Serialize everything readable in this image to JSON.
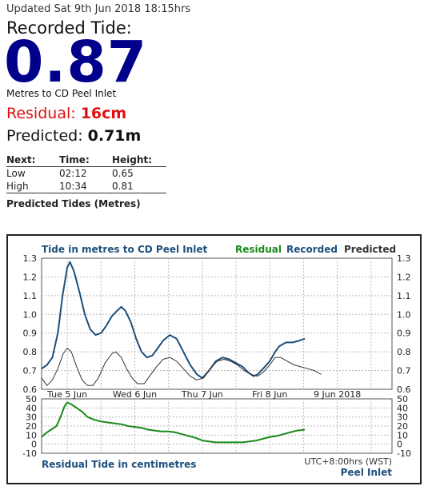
{
  "header": {
    "updated": "Updated Sat 9th Jun 2018 18:15hrs",
    "recorded_label": "Recorded Tide:",
    "recorded_value": "0.87",
    "units": "Metres to CD Peel Inlet",
    "residual_label": "Residual:",
    "residual_value": "16cm",
    "predicted_label": "Predicted:",
    "predicted_value": "0.71m"
  },
  "next_table": {
    "headers": [
      "Next:",
      "Time:",
      "Height:"
    ],
    "rows": [
      {
        "type": "Low",
        "time": "02:12",
        "height": "0.65"
      },
      {
        "type": "High",
        "time": "10:34",
        "height": "0.81"
      }
    ]
  },
  "predicted_tides_title": "Predicted Tides (Metres)",
  "colors": {
    "residual": "#1a8a1a",
    "recorded": "#1c4f7c",
    "predicted": "#333333",
    "recorded_value": "#00008b",
    "residual_text": "#e01010"
  },
  "chart_data": [
    {
      "type": "line",
      "title": "Tide in metres to CD Peel Inlet",
      "legend": [
        "Residual",
        "Recorded",
        "Predicted"
      ],
      "ylim": [
        0.6,
        1.3
      ],
      "yticks": [
        "0.6",
        "0.7",
        "0.8",
        "0.9",
        "1.0",
        "1.1",
        "1.2",
        "1.3"
      ],
      "xticks": [
        "Tue 5 Jun",
        "Wed 6 Jun",
        "Thu 7 Jun",
        "Fri 8 Jun",
        "9 Jun 2018"
      ],
      "xrange_days": [
        4.62,
        9.81
      ],
      "grid": true,
      "series": [
        {
          "name": "Recorded",
          "points": [
            [
              4.62,
              0.71
            ],
            [
              4.7,
              0.73
            ],
            [
              4.78,
              0.77
            ],
            [
              4.86,
              0.9
            ],
            [
              4.93,
              1.1
            ],
            [
              5.0,
              1.25
            ],
            [
              5.04,
              1.28
            ],
            [
              5.1,
              1.23
            ],
            [
              5.18,
              1.12
            ],
            [
              5.26,
              1.0
            ],
            [
              5.34,
              0.92
            ],
            [
              5.42,
              0.89
            ],
            [
              5.5,
              0.9
            ],
            [
              5.58,
              0.94
            ],
            [
              5.66,
              0.99
            ],
            [
              5.74,
              1.02
            ],
            [
              5.8,
              1.04
            ],
            [
              5.86,
              1.02
            ],
            [
              5.94,
              0.96
            ],
            [
              6.02,
              0.87
            ],
            [
              6.1,
              0.8
            ],
            [
              6.18,
              0.77
            ],
            [
              6.26,
              0.78
            ],
            [
              6.34,
              0.82
            ],
            [
              6.42,
              0.86
            ],
            [
              6.52,
              0.89
            ],
            [
              6.62,
              0.87
            ],
            [
              6.72,
              0.8
            ],
            [
              6.82,
              0.73
            ],
            [
              6.92,
              0.68
            ],
            [
              7.0,
              0.66
            ],
            [
              7.1,
              0.7
            ],
            [
              7.2,
              0.75
            ],
            [
              7.3,
              0.77
            ],
            [
              7.4,
              0.76
            ],
            [
              7.5,
              0.74
            ],
            [
              7.6,
              0.72
            ],
            [
              7.68,
              0.69
            ],
            [
              7.76,
              0.67
            ],
            [
              7.82,
              0.68
            ],
            [
              7.9,
              0.71
            ],
            [
              8.0,
              0.75
            ],
            [
              8.08,
              0.8
            ],
            [
              8.14,
              0.83
            ],
            [
              8.24,
              0.85
            ],
            [
              8.34,
              0.85
            ],
            [
              8.44,
              0.86
            ],
            [
              8.52,
              0.87
            ]
          ]
        },
        {
          "name": "Predicted",
          "points": [
            [
              4.62,
              0.66
            ],
            [
              4.7,
              0.62
            ],
            [
              4.78,
              0.65
            ],
            [
              4.86,
              0.71
            ],
            [
              4.94,
              0.79
            ],
            [
              5.0,
              0.82
            ],
            [
              5.06,
              0.8
            ],
            [
              5.14,
              0.72
            ],
            [
              5.22,
              0.65
            ],
            [
              5.3,
              0.62
            ],
            [
              5.38,
              0.62
            ],
            [
              5.46,
              0.66
            ],
            [
              5.56,
              0.74
            ],
            [
              5.66,
              0.79
            ],
            [
              5.72,
              0.8
            ],
            [
              5.8,
              0.77
            ],
            [
              5.88,
              0.71
            ],
            [
              5.96,
              0.66
            ],
            [
              6.04,
              0.63
            ],
            [
              6.14,
              0.63
            ],
            [
              6.22,
              0.67
            ],
            [
              6.32,
              0.72
            ],
            [
              6.42,
              0.76
            ],
            [
              6.52,
              0.77
            ],
            [
              6.62,
              0.75
            ],
            [
              6.72,
              0.71
            ],
            [
              6.82,
              0.67
            ],
            [
              6.92,
              0.65
            ],
            [
              7.02,
              0.66
            ],
            [
              7.12,
              0.71
            ],
            [
              7.22,
              0.75
            ],
            [
              7.32,
              0.76
            ],
            [
              7.42,
              0.75
            ],
            [
              7.52,
              0.73
            ],
            [
              7.62,
              0.7
            ],
            [
              7.72,
              0.68
            ],
            [
              7.82,
              0.67
            ],
            [
              7.9,
              0.69
            ],
            [
              8.0,
              0.73
            ],
            [
              8.08,
              0.77
            ],
            [
              8.16,
              0.77
            ],
            [
              8.26,
              0.75
            ],
            [
              8.36,
              0.73
            ],
            [
              8.46,
              0.72
            ],
            [
              8.56,
              0.71
            ],
            [
              8.66,
              0.7
            ],
            [
              8.76,
              0.68
            ]
          ]
        }
      ]
    },
    {
      "type": "line",
      "title": "Residual Tide in centimetres",
      "ylim": [
        -10,
        50
      ],
      "yticks": [
        "-10",
        "0",
        "10",
        "20",
        "30",
        "40",
        "50"
      ],
      "grid": true,
      "series": [
        {
          "name": "Residual",
          "points": [
            [
              4.62,
              8
            ],
            [
              4.68,
              12
            ],
            [
              4.76,
              16
            ],
            [
              4.84,
              20
            ],
            [
              4.9,
              30
            ],
            [
              4.96,
              42
            ],
            [
              5.0,
              46
            ],
            [
              5.06,
              44
            ],
            [
              5.14,
              40
            ],
            [
              5.22,
              36
            ],
            [
              5.3,
              30
            ],
            [
              5.4,
              27
            ],
            [
              5.5,
              25
            ],
            [
              5.6,
              24
            ],
            [
              5.7,
              23
            ],
            [
              5.8,
              22
            ],
            [
              5.9,
              20
            ],
            [
              6.0,
              19
            ],
            [
              6.1,
              18
            ],
            [
              6.2,
              16
            ],
            [
              6.3,
              15
            ],
            [
              6.4,
              14
            ],
            [
              6.5,
              14
            ],
            [
              6.6,
              13
            ],
            [
              6.7,
              11
            ],
            [
              6.8,
              9
            ],
            [
              6.9,
              7
            ],
            [
              7.0,
              4
            ],
            [
              7.1,
              3
            ],
            [
              7.2,
              2
            ],
            [
              7.3,
              2
            ],
            [
              7.4,
              2
            ],
            [
              7.5,
              2
            ],
            [
              7.6,
              2
            ],
            [
              7.7,
              3
            ],
            [
              7.8,
              4
            ],
            [
              7.9,
              6
            ],
            [
              8.0,
              8
            ],
            [
              8.1,
              9
            ],
            [
              8.2,
              11
            ],
            [
              8.3,
              13
            ],
            [
              8.4,
              15
            ],
            [
              8.52,
              16
            ]
          ]
        }
      ]
    }
  ],
  "chart_footer": {
    "timezone": "UTC+8:00hrs (WST)",
    "location": "Peel Inlet"
  }
}
